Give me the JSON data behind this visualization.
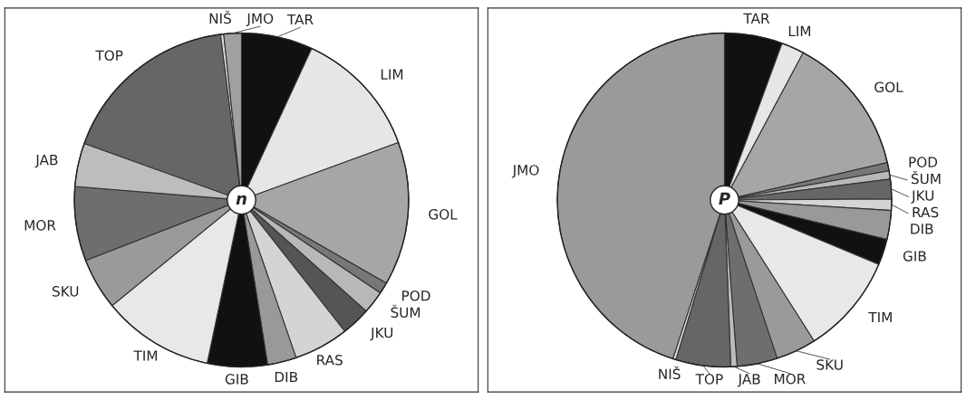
{
  "chart_data": [
    {
      "type": "pie",
      "annotations": [
        "n"
      ],
      "categories": [
        "TAR",
        "LIM",
        "GOL",
        "POD",
        "ŠUM",
        "JKU",
        "RAS",
        "DIB",
        "GIB",
        "TIM",
        "SKU",
        "MOR",
        "JAB",
        "TOP",
        "NIŠ",
        "JMO"
      ],
      "values": [
        6.9,
        12.5,
        13.9,
        1.1,
        2.2,
        2.8,
        5.3,
        2.8,
        5.8,
        10.8,
        5.0,
        7.2,
        4.2,
        17.5,
        0.3,
        1.7
      ],
      "colors": [
        "#111111",
        "#e6e6e6",
        "#a6a6a6",
        "#777777",
        "#b8b8b8",
        "#555555",
        "#d4d4d4",
        "#999999",
        "#111111",
        "#e8e8e8",
        "#9a9a9a",
        "#6e6e6e",
        "#bdbdbd",
        "#666666",
        "#dddddd",
        "#a0a0a0"
      ]
    },
    {
      "type": "pie",
      "annotations": [
        "P"
      ],
      "categories": [
        "TAR",
        "LIM",
        "GOL",
        "POD",
        "ŠUM",
        "JKU",
        "RAS",
        "DIB",
        "GIB",
        "TIM",
        "SKU",
        "MOR",
        "JAB",
        "TOP",
        "NIŠ",
        "JMO"
      ],
      "values": [
        5.6,
        2.2,
        13.6,
        0.8,
        0.8,
        1.9,
        1.1,
        2.8,
        2.5,
        9.7,
        3.9,
        3.9,
        0.6,
        5.3,
        0.3,
        45.0
      ],
      "colors": [
        "#111111",
        "#e6e6e6",
        "#a6a6a6",
        "#777777",
        "#b8b8b8",
        "#666666",
        "#d4d4d4",
        "#999999",
        "#111111",
        "#e8e8e8",
        "#9a9a9a",
        "#6e6e6e",
        "#bdbdbd",
        "#666666",
        "#dddddd",
        "#9a9a9a"
      ]
    }
  ]
}
